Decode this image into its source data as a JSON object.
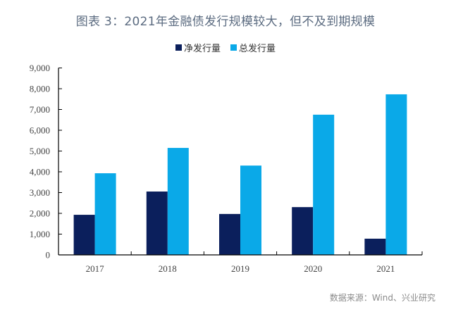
{
  "chart_data": {
    "type": "bar",
    "title": "图表 3：2021年金融债发行规模较大，但不及到期规模",
    "xlabel": "",
    "ylabel": "",
    "categories": [
      "2017",
      "2018",
      "2019",
      "2020",
      "2021"
    ],
    "series": [
      {
        "name": "净发行量",
        "color": "#0b1f5c",
        "values": [
          1930,
          3050,
          1970,
          2300,
          780
        ]
      },
      {
        "name": "总发行量",
        "color": "#0aa9e8",
        "values": [
          3930,
          5150,
          4300,
          6750,
          7730
        ]
      }
    ],
    "ylim": [
      0,
      9000
    ],
    "yticks": [
      0,
      1000,
      2000,
      3000,
      4000,
      5000,
      6000,
      7000,
      8000,
      9000
    ],
    "ytick_labels": [
      "0",
      "1,000",
      "2,000",
      "3,000",
      "4,000",
      "5,000",
      "6,000",
      "7,000",
      "8,000",
      "9,000"
    ],
    "grid": false,
    "legend_position": "top-center",
    "source": "数据来源：Wind、兴业研究"
  }
}
